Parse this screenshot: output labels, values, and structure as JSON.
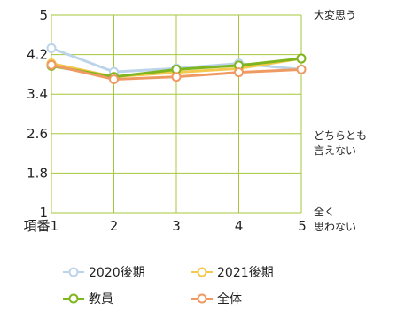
{
  "chart_data": {
    "type": "line",
    "categories": [
      "項番1",
      "2",
      "3",
      "4",
      "5"
    ],
    "ylim": [
      1,
      5
    ],
    "yticks": [
      "5",
      "4.2",
      "3.4",
      "2.6",
      "1.8",
      "1"
    ],
    "right_labels": {
      "top": "大変思う",
      "middle_line1": "どちらとも",
      "middle_line2": "言えない",
      "bottom_line1": "全く",
      "bottom_line2": "思わない"
    },
    "grid": true,
    "legend_position": "bottom",
    "series": [
      {
        "name": "2020後期",
        "color": "#bcd4ea",
        "values": [
          4.33,
          3.85,
          3.92,
          4.02,
          3.9
        ]
      },
      {
        "name": "2021後期",
        "color": "#f2c94c",
        "values": [
          4.02,
          3.75,
          3.84,
          3.92,
          4.12
        ]
      },
      {
        "name": "教員",
        "color": "#7fb51e",
        "values": [
          3.97,
          3.75,
          3.9,
          3.98,
          4.12
        ]
      },
      {
        "name": "全体",
        "color": "#ef9a63",
        "values": [
          3.99,
          3.7,
          3.75,
          3.84,
          3.9
        ]
      }
    ]
  }
}
